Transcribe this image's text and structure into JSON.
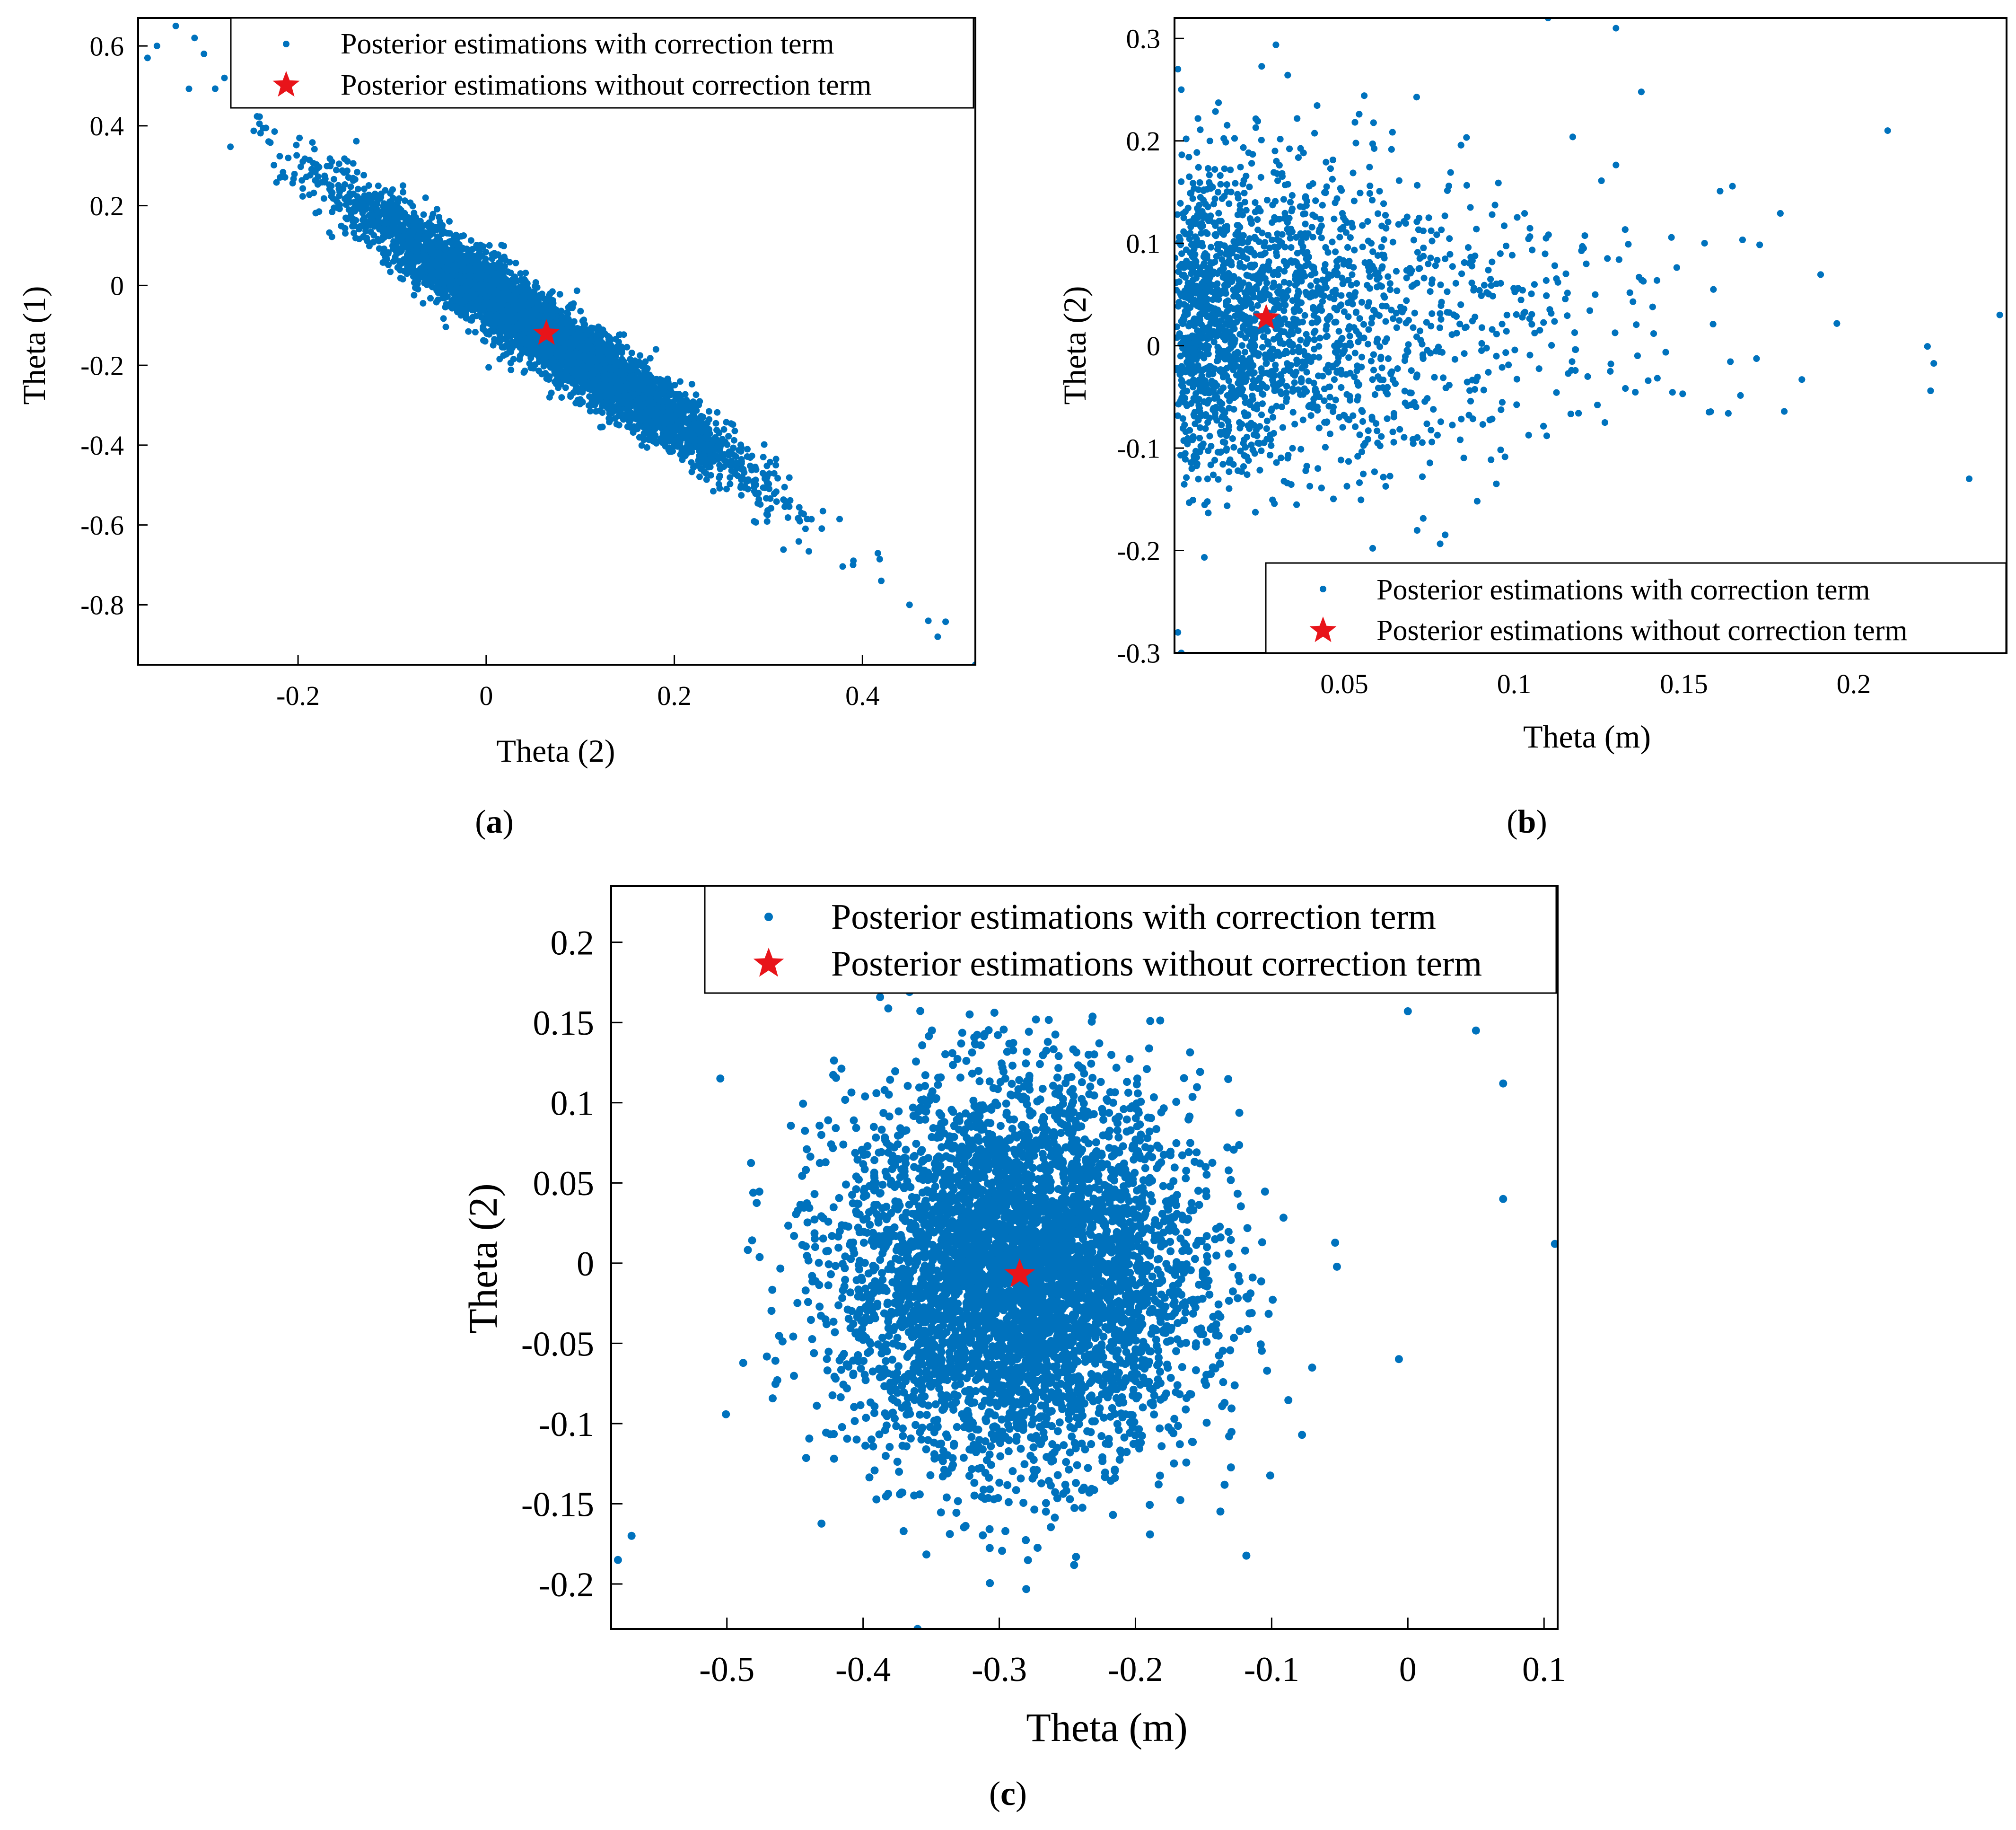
{
  "colors": {
    "scatter": "#0072BD",
    "star": "#E8141A",
    "axis": "#000000"
  },
  "panels": [
    {
      "id": "a",
      "label_open": "(",
      "label_letter": "a",
      "label_close": ")"
    },
    {
      "id": "b",
      "label_open": "(",
      "label_letter": "b",
      "label_close": ")"
    },
    {
      "id": "c",
      "label_open": "(",
      "label_letter": "c",
      "label_close": ")"
    }
  ],
  "chart_data": [
    {
      "panel": "a",
      "type": "scatter",
      "xlabel": "Theta (2)",
      "ylabel": "Theta (1)",
      "xlim": [
        -0.37,
        0.52
      ],
      "ylim": [
        -0.95,
        0.67
      ],
      "xticks": [
        -0.2,
        0,
        0.2,
        0.4
      ],
      "xtick_labels": [
        "-0.2",
        "0",
        "0.2",
        "0.4"
      ],
      "yticks": [
        0.6,
        0.4,
        0.2,
        0,
        -0.2,
        -0.4,
        -0.6,
        -0.8
      ],
      "ytick_labels": [
        "0.6",
        "0.4",
        "0.2",
        "0",
        "-0.2",
        "-0.4",
        "-0.6",
        "-0.8"
      ],
      "legend": {
        "location": "top-right",
        "entries": [
          "Posterior estimations with correction term",
          "Posterior estimations without correction term"
        ]
      },
      "series": [
        {
          "name": "Posterior estimations with correction term",
          "marker": "dot",
          "distribution": "correlated cloud along y = -1.6x - 0.02",
          "center": [
            0.06,
            -0.12
          ],
          "n_points": 5200
        },
        {
          "name": "Posterior estimations without correction term",
          "marker": "star",
          "points": [
            [
              0.064,
              -0.12
            ]
          ]
        }
      ]
    },
    {
      "panel": "b",
      "type": "scatter",
      "xlabel": "Theta (m)",
      "ylabel": "Theta (2)",
      "xlim": [
        0.0,
        0.245
      ],
      "ylim": [
        -0.3,
        0.32
      ],
      "xticks": [
        0.05,
        0.1,
        0.15,
        0.2
      ],
      "xtick_labels": [
        "0.05",
        "0.1",
        "0.15",
        "0.2"
      ],
      "yticks": [
        0.3,
        0.2,
        0.1,
        0,
        -0.1,
        -0.2,
        -0.3
      ],
      "ytick_labels": [
        "0.3",
        "0.2",
        "0.1",
        "0",
        "-0.1",
        "-0.2",
        "-0.3"
      ],
      "legend": {
        "location": "bottom-right",
        "entries": [
          "Posterior estimations with correction term",
          "Posterior estimations without correction term"
        ]
      },
      "series": [
        {
          "name": "Posterior estimations with correction term",
          "marker": "dot",
          "distribution": "dense near x = 0, exponential tail in x",
          "center": [
            0.027,
            0.027
          ],
          "n_points": 4500
        },
        {
          "name": "Posterior estimations without correction term",
          "marker": "star",
          "points": [
            [
              0.027,
              0.027
            ]
          ]
        }
      ]
    },
    {
      "panel": "c",
      "type": "scatter",
      "xlabel": "Theta (m)",
      "ylabel": "Theta (2)",
      "xlim": [
        -0.585,
        0.11
      ],
      "ylim": [
        -0.228,
        0.235
      ],
      "xticks": [
        -0.5,
        -0.4,
        -0.3,
        -0.2,
        -0.1,
        0,
        0.1
      ],
      "xtick_labels": [
        "-0.5",
        "-0.4",
        "-0.3",
        "-0.2",
        "-0.1",
        "0",
        "0.1"
      ],
      "yticks": [
        0.2,
        0.15,
        0.1,
        0.05,
        0,
        -0.05,
        -0.1,
        -0.15,
        -0.2
      ],
      "ytick_labels": [
        "0.2",
        "0.15",
        "0.1",
        "0.05",
        "0",
        "-0.05",
        "-0.1",
        "-0.15",
        "-0.2"
      ],
      "legend": {
        "location": "top-right",
        "entries": [
          "Posterior estimations with correction term",
          "Posterior estimations without correction term"
        ]
      },
      "series": [
        {
          "name": "Posterior estimations with correction term",
          "marker": "dot",
          "distribution": "roughly circular gaussian cloud",
          "center": [
            -0.285,
            -0.007
          ],
          "n_points": 5000
        },
        {
          "name": "Posterior estimations without correction term",
          "marker": "star",
          "points": [
            [
              -0.285,
              -0.007
            ]
          ]
        }
      ]
    }
  ]
}
